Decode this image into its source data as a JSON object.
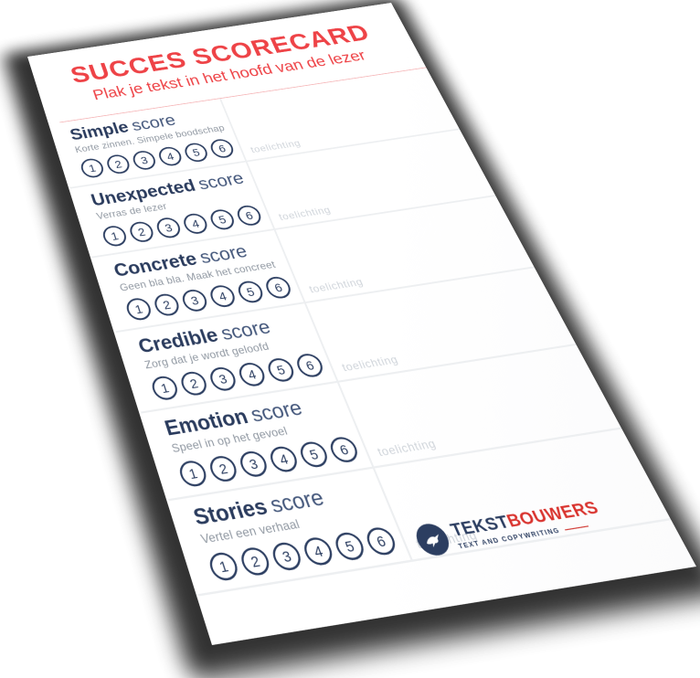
{
  "page": {
    "title": "SUCCES SCORECARD",
    "subtitle": "Plak je tekst in het hoofd van de lezer"
  },
  "sections": [
    {
      "name": "Simple",
      "score_label": "score",
      "description": "Korte zinnen. Simpele boodschap",
      "ratings": [
        "1",
        "2",
        "3",
        "4",
        "5",
        "6"
      ],
      "note_placeholder": "toelichting"
    },
    {
      "name": "Unexpected",
      "score_label": "score",
      "description": "Verras de lezer",
      "ratings": [
        "1",
        "2",
        "3",
        "4",
        "5",
        "6"
      ],
      "note_placeholder": "toelichting"
    },
    {
      "name": "Concrete",
      "score_label": "score",
      "description": "Geen bla bla. Maak het concreet",
      "ratings": [
        "1",
        "2",
        "3",
        "4",
        "5",
        "6"
      ],
      "note_placeholder": "toelichting"
    },
    {
      "name": "Credible",
      "score_label": "score",
      "description": "Zorg dat je wordt geloofd",
      "ratings": [
        "1",
        "2",
        "3",
        "4",
        "5",
        "6"
      ],
      "note_placeholder": "toelichting"
    },
    {
      "name": "Emotion",
      "score_label": "score",
      "description": "Speel in op het gevoel",
      "ratings": [
        "1",
        "2",
        "3",
        "4",
        "5",
        "6"
      ],
      "note_placeholder": "toelichting"
    },
    {
      "name": "Stories",
      "score_label": "score",
      "description": "Vertel een verhaal",
      "ratings": [
        "1",
        "2",
        "3",
        "4",
        "5",
        "6"
      ],
      "note_placeholder": "toelichting"
    }
  ],
  "logo": {
    "brand_primary": "TEKST",
    "brand_secondary": "BOUWERS",
    "tagline": "TEXT AND COPYWRITING",
    "icon": "dove-icon"
  },
  "colors": {
    "accent_red": "#ee4347",
    "header_rule_red": "#f5b3b5",
    "navy": "#2c3e61",
    "score_navy_light": "#45587c",
    "description_gray": "#8f97a1",
    "hint_gray": "#cfd4da",
    "divider_gray": "#edeff1",
    "logo_red": "#d9342f"
  }
}
